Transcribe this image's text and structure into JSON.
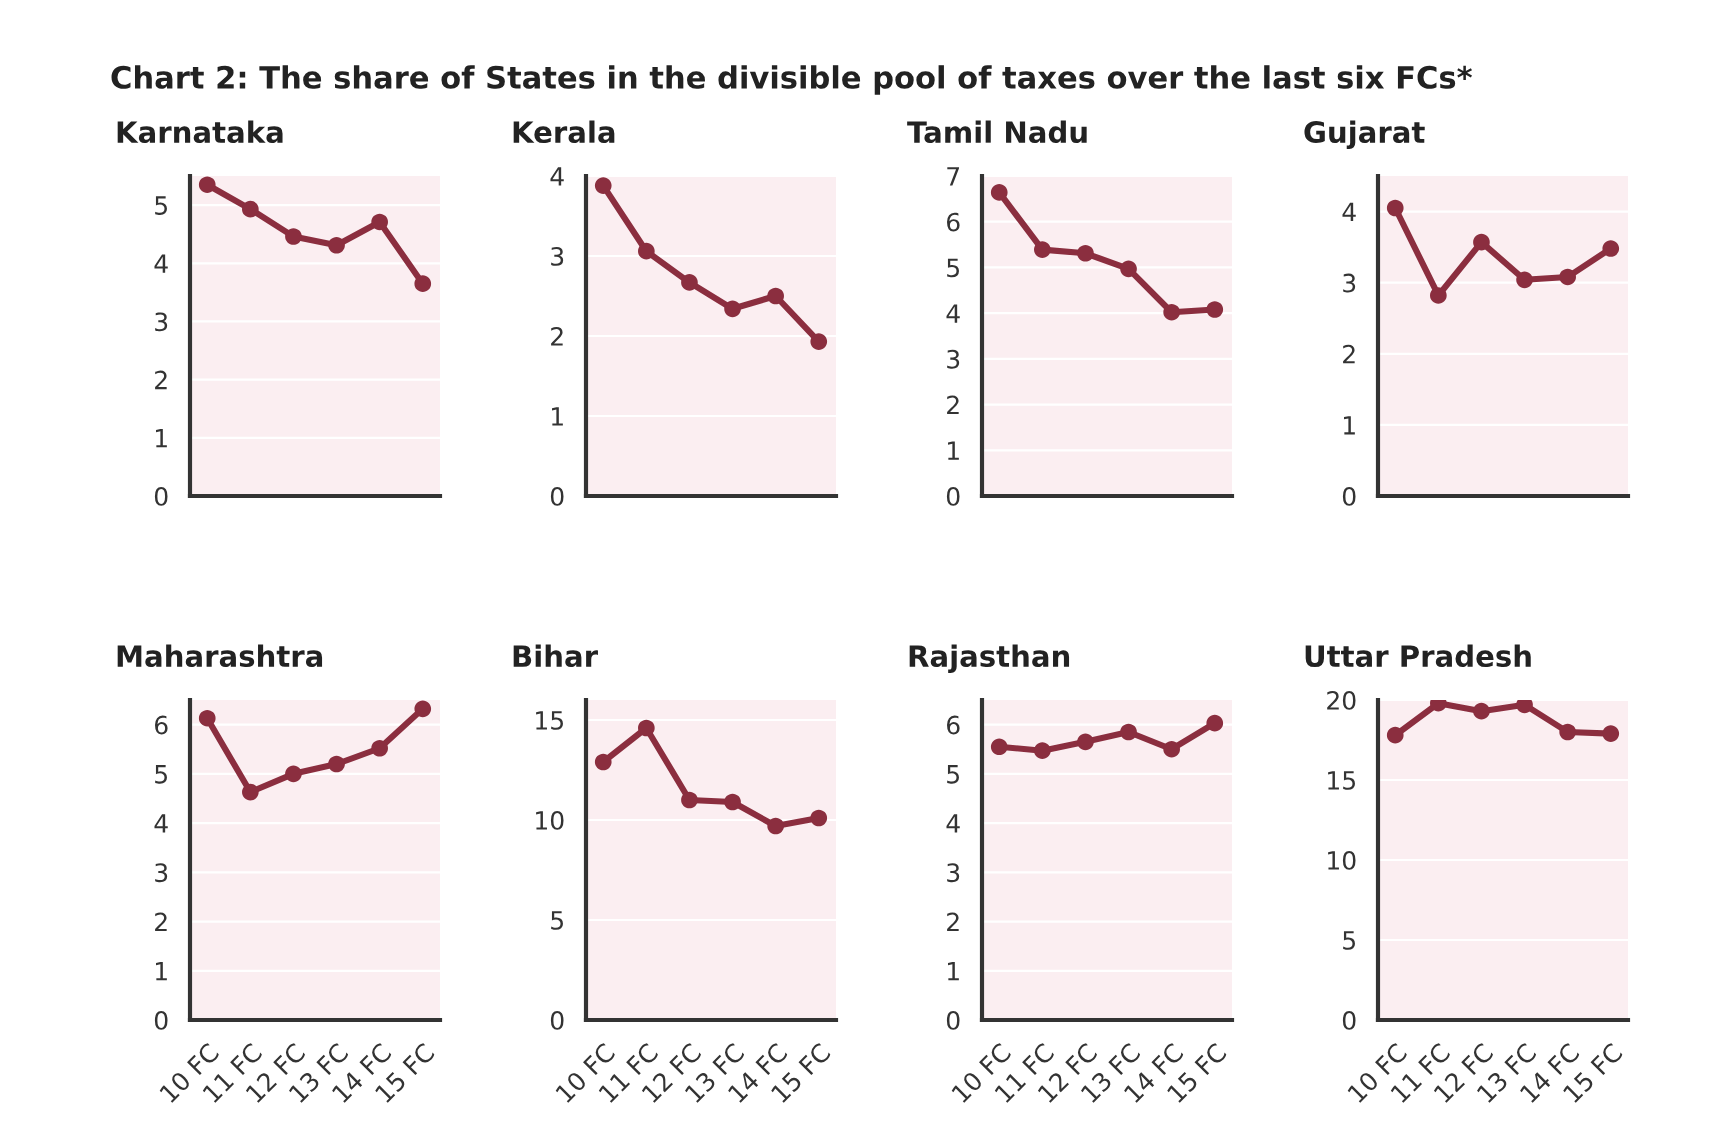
{
  "chart_data": [
    {
      "type": "line",
      "title": "Karnataka",
      "annotations": [
        "Chart 2: The share of States in the divisible pool of taxes over the last six FCs*"
      ],
      "categories": [
        null,
        null,
        null,
        null,
        null,
        null
      ],
      "series": [
        {
          "color": "#8b2e3f",
          "values": [
            5.35,
            4.93,
            4.46,
            4.31,
            4.71,
            3.65
          ]
        }
      ],
      "ylim": [
        0,
        5.5
      ],
      "yticks": [
        0,
        1,
        2,
        3,
        4,
        5
      ],
      "grid": "y",
      "marker": "circle",
      "line_style": "solid",
      "tick_labels": "y"
    },
    {
      "type": "line",
      "title": "Kerala",
      "categories": [
        null,
        null,
        null,
        null,
        null,
        null
      ],
      "series": [
        {
          "color": "#8b2e3f",
          "values": [
            3.88,
            3.06,
            2.67,
            2.34,
            2.5,
            1.93
          ]
        }
      ],
      "ylim": [
        0,
        4
      ],
      "yticks": [
        0,
        1,
        2,
        3,
        4
      ],
      "grid": "y",
      "marker": "circle",
      "line_style": "solid",
      "tick_labels": "y"
    },
    {
      "type": "line",
      "title": "Tamil Nadu",
      "categories": [
        null,
        null,
        null,
        null,
        null,
        null
      ],
      "series": [
        {
          "color": "#8b2e3f",
          "values": [
            6.64,
            5.39,
            5.31,
            4.97,
            4.02,
            4.08
          ]
        }
      ],
      "ylim": [
        0,
        7
      ],
      "yticks": [
        0,
        1,
        2,
        3,
        4,
        5,
        6,
        7
      ],
      "grid": "y",
      "marker": "circle",
      "line_style": "solid",
      "tick_labels": "y"
    },
    {
      "type": "line",
      "title": "Gujarat",
      "categories": [
        null,
        null,
        null,
        null,
        null,
        null
      ],
      "series": [
        {
          "color": "#8b2e3f",
          "values": [
            4.05,
            2.82,
            3.57,
            3.04,
            3.08,
            3.48
          ]
        }
      ],
      "ylim": [
        0,
        4.5
      ],
      "yticks": [
        0,
        1,
        2,
        3,
        4
      ],
      "grid": "y",
      "marker": "circle",
      "line_style": "solid",
      "tick_labels": "y"
    },
    {
      "type": "line",
      "title": "Maharashtra",
      "categories": [
        "10 FC",
        "11 FC",
        "12 FC",
        "13 FC",
        "14 FC",
        "15 FC"
      ],
      "series": [
        {
          "color": "#8b2e3f",
          "values": [
            6.13,
            4.63,
            5.0,
            5.2,
            5.52,
            6.32
          ]
        }
      ],
      "ylim": [
        0,
        6.5
      ],
      "yticks": [
        0,
        1,
        2,
        3,
        4,
        5,
        6
      ],
      "grid": "y",
      "marker": "circle",
      "line_style": "solid"
    },
    {
      "type": "line",
      "title": "Bihar",
      "categories": [
        "10 FC",
        "11 FC",
        "12 FC",
        "13 FC",
        "14 FC",
        "15 FC"
      ],
      "series": [
        {
          "color": "#8b2e3f",
          "values": [
            12.9,
            14.6,
            11.0,
            10.9,
            9.7,
            10.1
          ]
        }
      ],
      "ylim": [
        0,
        16
      ],
      "yticks": [
        0,
        5,
        10,
        15
      ],
      "grid": "y",
      "marker": "circle",
      "line_style": "solid"
    },
    {
      "type": "line",
      "title": "Rajasthan",
      "categories": [
        "10 FC",
        "11 FC",
        "12 FC",
        "13 FC",
        "14 FC",
        "15 FC"
      ],
      "series": [
        {
          "color": "#8b2e3f",
          "values": [
            5.55,
            5.47,
            5.65,
            5.85,
            5.5,
            6.03
          ]
        }
      ],
      "ylim": [
        0,
        6.5
      ],
      "yticks": [
        0,
        1,
        2,
        3,
        4,
        5,
        6
      ],
      "grid": "y",
      "marker": "circle",
      "line_style": "solid"
    },
    {
      "type": "line",
      "title": "Uttar Pradesh",
      "categories": [
        "10 FC",
        "11 FC",
        "12 FC",
        "13 FC",
        "14 FC",
        "15 FC"
      ],
      "series": [
        {
          "color": "#8b2e3f",
          "values": [
            17.8,
            19.8,
            19.3,
            19.7,
            18.0,
            17.9
          ]
        }
      ],
      "ylim": [
        0,
        20
      ],
      "yticks": [
        0,
        5,
        10,
        15,
        20
      ],
      "grid": "y",
      "marker": "circle",
      "line_style": "solid"
    }
  ]
}
